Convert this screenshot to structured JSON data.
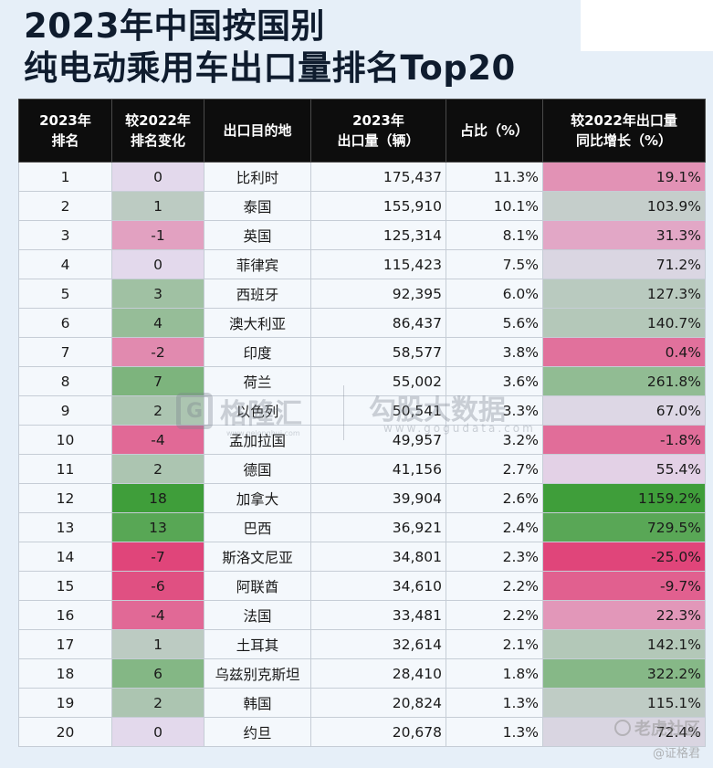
{
  "title": {
    "line1": "2023年中国按国别",
    "line2": "纯电动乘用车出口量排名Top20"
  },
  "headers": [
    [
      "2023年",
      "排名"
    ],
    [
      "较2022年",
      "排名变化"
    ],
    [
      "出口目的地"
    ],
    [
      "2023年",
      "出口量（辆）"
    ],
    [
      "占比（%）"
    ],
    [
      "较2022年出口量",
      "同比增长（%）"
    ]
  ],
  "rows": [
    {
      "rank": "1",
      "change": "0",
      "country": "比利时",
      "volume": "175,437",
      "share": "11.3%",
      "growth": "19.1%"
    },
    {
      "rank": "2",
      "change": "1",
      "country": "泰国",
      "volume": "155,910",
      "share": "10.1%",
      "growth": "103.9%"
    },
    {
      "rank": "3",
      "change": "-1",
      "country": "英国",
      "volume": "125,314",
      "share": "8.1%",
      "growth": "31.3%"
    },
    {
      "rank": "4",
      "change": "0",
      "country": "菲律宾",
      "volume": "115,423",
      "share": "7.5%",
      "growth": "71.2%"
    },
    {
      "rank": "5",
      "change": "3",
      "country": "西班牙",
      "volume": "92,395",
      "share": "6.0%",
      "growth": "127.3%"
    },
    {
      "rank": "6",
      "change": "4",
      "country": "澳大利亚",
      "volume": "86,437",
      "share": "5.6%",
      "growth": "140.7%"
    },
    {
      "rank": "7",
      "change": "-2",
      "country": "印度",
      "volume": "58,577",
      "share": "3.8%",
      "growth": "0.4%"
    },
    {
      "rank": "8",
      "change": "7",
      "country": "荷兰",
      "volume": "55,002",
      "share": "3.6%",
      "growth": "261.8%"
    },
    {
      "rank": "9",
      "change": "2",
      "country": "以色列",
      "volume": "50,541",
      "share": "3.3%",
      "growth": "67.0%"
    },
    {
      "rank": "10",
      "change": "-4",
      "country": "孟加拉国",
      "volume": "49,957",
      "share": "3.2%",
      "growth": "-1.8%"
    },
    {
      "rank": "11",
      "change": "2",
      "country": "德国",
      "volume": "41,156",
      "share": "2.7%",
      "growth": "55.4%"
    },
    {
      "rank": "12",
      "change": "18",
      "country": "加拿大",
      "volume": "39,904",
      "share": "2.6%",
      "growth": "1159.2%"
    },
    {
      "rank": "13",
      "change": "13",
      "country": "巴西",
      "volume": "36,921",
      "share": "2.4%",
      "growth": "729.5%"
    },
    {
      "rank": "14",
      "change": "-7",
      "country": "斯洛文尼亚",
      "volume": "34,801",
      "share": "2.3%",
      "growth": "-25.0%"
    },
    {
      "rank": "15",
      "change": "-6",
      "country": "阿联酋",
      "volume": "34,610",
      "share": "2.2%",
      "growth": "-9.7%"
    },
    {
      "rank": "16",
      "change": "-4",
      "country": "法国",
      "volume": "33,481",
      "share": "2.2%",
      "growth": "22.3%"
    },
    {
      "rank": "17",
      "change": "1",
      "country": "土耳其",
      "volume": "32,614",
      "share": "2.1%",
      "growth": "142.1%"
    },
    {
      "rank": "18",
      "change": "6",
      "country": "乌兹别克斯坦",
      "volume": "28,410",
      "share": "1.8%",
      "growth": "322.2%"
    },
    {
      "rank": "19",
      "change": "2",
      "country": "韩国",
      "volume": "20,824",
      "share": "1.3%",
      "growth": "115.1%"
    },
    {
      "rank": "20",
      "change": "0",
      "country": "约旦",
      "volume": "20,678",
      "share": "1.3%",
      "growth": "72.4%"
    }
  ],
  "heat_colors": {
    "strong_negative": "#e0457a",
    "neutral": "#e3d9ec",
    "strong_positive": "#3f9e3a"
  },
  "watermarks": {
    "gelonghui_icon": "G",
    "gelonghui": "格隆汇",
    "gelonghui_url": "www.gelonghui.com",
    "gogu": "勾股大数据",
    "gogu_url": "www.gogudata.com",
    "tiger": "老虎社区",
    "author": "@证格君"
  }
}
